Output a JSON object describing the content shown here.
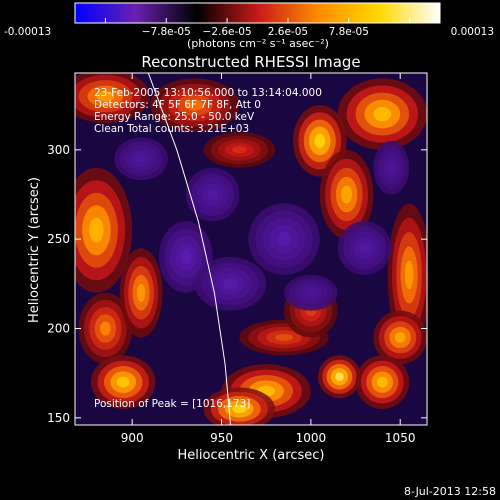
{
  "colorbar": {
    "ticks": [
      "-0.00013",
      "−7.8e-05",
      "−2.6e-05",
      "2.6e-05",
      "7.8e-05",
      "0.00013"
    ],
    "unit_label": "(photons cm⁻² s⁻¹ asec⁻²)",
    "gradient": [
      "#0000ff",
      "#6a20b0",
      "#000000",
      "#c81818",
      "#ff8c00",
      "#ffd800",
      "#ffffff"
    ]
  },
  "plot": {
    "title": "Reconstructed RHESSI Image",
    "info_lines": [
      "23-Feb-2005 13:10:56.000 to 13:14:04.000",
      "Detectors: 4F 5F 6F 7F 8F, Att 0",
      "Energy Range: 25.0 - 50.0 keV",
      "Clean    Total counts: 3.21E+03"
    ],
    "peak_label": "Position of Peak = [1016,173]",
    "colors": {
      "limb": "#ffffff",
      "frame": "#ffffff",
      "text": "#ffffff"
    }
  },
  "timestamp": "8-Jul-2013 12:58",
  "chart_data": {
    "type": "heatmap",
    "title": "Reconstructed RHESSI Image",
    "xlabel": "Heliocentric X (arcsec)",
    "ylabel": "Heliocentric Y (arcsec)",
    "xlim": [
      868,
      1065
    ],
    "ylim": [
      146,
      343
    ],
    "xticks": [
      900,
      950,
      1000,
      1050
    ],
    "yticks": [
      150,
      200,
      250,
      300
    ],
    "x_tick_labels": [
      "900",
      "950",
      "1000",
      "1050"
    ],
    "y_tick_labels": [
      "150",
      "200",
      "250",
      "300"
    ],
    "colorbar_range": [
      -0.00013,
      0.00013
    ],
    "peak_position": [
      1016,
      173
    ],
    "limb_curve": [
      [
        909,
        343
      ],
      [
        925,
        300
      ],
      [
        937,
        260
      ],
      [
        946,
        220
      ],
      [
        952,
        180
      ],
      [
        955,
        146
      ]
    ],
    "blobs": [
      {
        "x": 880,
        "y": 255,
        "w": 20,
        "h": 35,
        "v": 0.8
      },
      {
        "x": 885,
        "y": 200,
        "w": 15,
        "h": 20,
        "v": 0.6
      },
      {
        "x": 895,
        "y": 170,
        "w": 18,
        "h": 15,
        "v": 0.9
      },
      {
        "x": 905,
        "y": 220,
        "w": 12,
        "h": 25,
        "v": 0.7
      },
      {
        "x": 885,
        "y": 330,
        "w": 25,
        "h": 15,
        "v": 0.7
      },
      {
        "x": 935,
        "y": 325,
        "w": 25,
        "h": 15,
        "v": 0.55
      },
      {
        "x": 960,
        "y": 300,
        "w": 20,
        "h": 10,
        "v": 0.35
      },
      {
        "x": 1005,
        "y": 305,
        "w": 15,
        "h": 20,
        "v": 0.95
      },
      {
        "x": 1040,
        "y": 320,
        "w": 25,
        "h": 20,
        "v": 0.85
      },
      {
        "x": 1020,
        "y": 275,
        "w": 15,
        "h": 25,
        "v": 0.75
      },
      {
        "x": 1055,
        "y": 230,
        "w": 12,
        "h": 40,
        "v": 0.7
      },
      {
        "x": 1050,
        "y": 195,
        "w": 15,
        "h": 15,
        "v": 0.75
      },
      {
        "x": 975,
        "y": 165,
        "w": 25,
        "h": 15,
        "v": 0.85
      },
      {
        "x": 960,
        "y": 155,
        "w": 20,
        "h": 12,
        "v": 0.95
      },
      {
        "x": 1016,
        "y": 173,
        "w": 12,
        "h": 12,
        "v": 1.0
      },
      {
        "x": 1040,
        "y": 170,
        "w": 15,
        "h": 15,
        "v": 0.85
      },
      {
        "x": 985,
        "y": 195,
        "w": 25,
        "h": 10,
        "v": 0.45
      },
      {
        "x": 1000,
        "y": 210,
        "w": 15,
        "h": 15,
        "v": 0.4
      },
      {
        "x": 945,
        "y": 275,
        "w": 15,
        "h": 15,
        "v": -0.45
      },
      {
        "x": 930,
        "y": 240,
        "w": 15,
        "h": 20,
        "v": -0.55
      },
      {
        "x": 955,
        "y": 225,
        "w": 20,
        "h": 15,
        "v": -0.5
      },
      {
        "x": 985,
        "y": 250,
        "w": 20,
        "h": 20,
        "v": -0.5
      },
      {
        "x": 1030,
        "y": 245,
        "w": 15,
        "h": 15,
        "v": -0.45
      },
      {
        "x": 1000,
        "y": 220,
        "w": 15,
        "h": 10,
        "v": -0.35
      },
      {
        "x": 905,
        "y": 295,
        "w": 15,
        "h": 12,
        "v": -0.4
      },
      {
        "x": 1045,
        "y": 290,
        "w": 10,
        "h": 15,
        "v": -0.35
      }
    ]
  }
}
